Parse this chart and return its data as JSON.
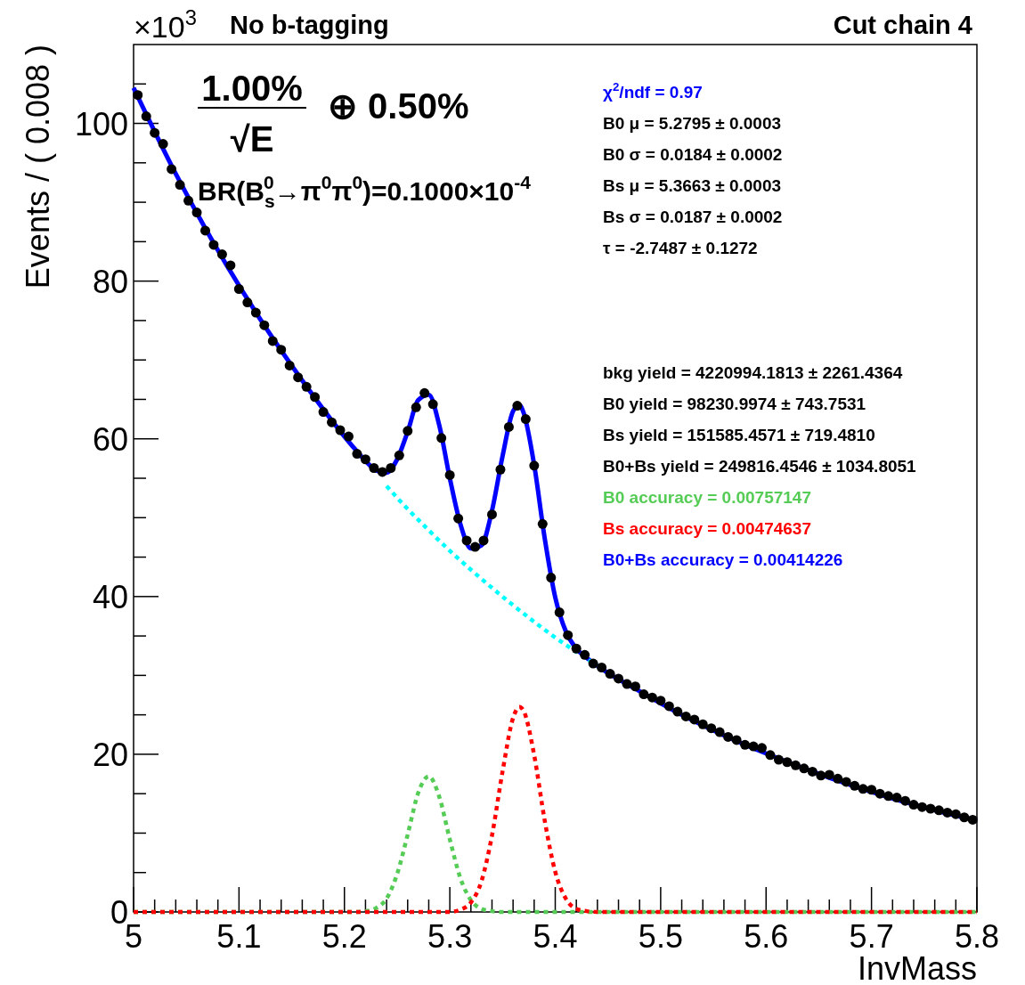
{
  "chart_data": {
    "type": "scatter",
    "title": "No b-tagging",
    "subtitle": "Cut chain 4",
    "xlabel": "InvMass",
    "ylabel": "Events / ( 0.008 )",
    "xlim": [
      5,
      5.8
    ],
    "ylim": [
      0,
      110
    ],
    "xticks": [
      5,
      {
        "value": 5.02,
        "label": null
      },
      {
        "value": 5.04,
        "label": null
      },
      {
        "value": 5.06,
        "label": null
      },
      {
        "value": 5.08,
        "label": null
      },
      5.1,
      {
        "value": 5.12,
        "label": null
      },
      {
        "value": 5.14,
        "label": null
      },
      {
        "value": 5.16,
        "label": null
      },
      {
        "value": 5.18,
        "label": null
      },
      5.2,
      {
        "value": 5.22,
        "label": null
      },
      {
        "value": 5.24,
        "label": null
      },
      {
        "value": 5.26,
        "label": null
      },
      {
        "value": 5.28,
        "label": null
      },
      5.3,
      {
        "value": 5.32,
        "label": null
      },
      {
        "value": 5.34,
        "label": null
      },
      {
        "value": 5.36,
        "label": null
      },
      {
        "value": 5.38,
        "label": null
      },
      5.4,
      {
        "value": 5.42,
        "label": null
      },
      {
        "value": 5.44,
        "label": null
      },
      {
        "value": 5.46,
        "label": null
      },
      {
        "value": 5.48,
        "label": null
      },
      5.5,
      {
        "value": 5.52,
        "label": null
      },
      {
        "value": 5.54,
        "label": null
      },
      {
        "value": 5.56,
        "label": null
      },
      {
        "value": 5.58,
        "label": null
      },
      5.6,
      {
        "value": 5.62,
        "label": null
      },
      {
        "value": 5.64,
        "label": null
      },
      {
        "value": 5.66,
        "label": null
      },
      {
        "value": 5.68,
        "label": null
      },
      5.7,
      {
        "value": 5.72,
        "label": null
      },
      {
        "value": 5.74,
        "label": null
      },
      {
        "value": 5.76,
        "label": null
      },
      {
        "value": 5.78,
        "label": null
      },
      5.8
    ],
    "yticks": [
      0,
      {
        "value": 5,
        "label": null
      },
      {
        "value": 10,
        "label": null
      },
      {
        "value": 15,
        "label": null
      },
      20,
      {
        "value": 25,
        "label": null
      },
      {
        "value": 30,
        "label": null
      },
      {
        "value": 35,
        "label": null
      },
      40,
      {
        "value": 45,
        "label": null
      },
      {
        "value": 50,
        "label": null
      },
      {
        "value": 55,
        "label": null
      },
      60,
      {
        "value": 65,
        "label": null
      },
      {
        "value": 70,
        "label": null
      },
      {
        "value": 75,
        "label": null
      },
      80,
      {
        "value": 85,
        "label": null
      },
      {
        "value": 90,
        "label": null
      },
      {
        "value": 95,
        "label": null
      },
      100,
      {
        "value": 105,
        "label": null
      }
    ],
    "grid": false,
    "marker": "circle",
    "series": [
      {
        "type": "line",
        "color": "#0000ff",
        "line_style": "solid",
        "marker": "none",
        "x": [
          5,
          5.04,
          5.08,
          5.12,
          5.16,
          5.2,
          5.21,
          5.22,
          5.23,
          5.24,
          5.25,
          5.26,
          5.27,
          5.28,
          5.29,
          5.3,
          5.31,
          5.32,
          5.33,
          5.34,
          5.35,
          5.36,
          5.366,
          5.37,
          5.38,
          5.39,
          5.4,
          5.41,
          5.42,
          5.43,
          5.44,
          5.48,
          5.52,
          5.56,
          5.6,
          5.64,
          5.68,
          5.72,
          5.76,
          5.8
        ],
        "values": [
          104.5,
          93.6,
          83.9,
          75.2,
          67.4,
          60.3,
          58.7,
          57.2,
          56.0,
          55.7,
          57.4,
          60.9,
          64.9,
          65.6,
          61.7,
          55.0,
          49.2,
          46.1,
          46.5,
          50.9,
          57.8,
          63.5,
          64.3,
          63.3,
          56.7,
          47.4,
          39.9,
          35.6,
          33.4,
          32.2,
          31.2,
          28.0,
          25.0,
          22.4,
          20.1,
          18.0,
          16.1,
          14.4,
          12.9,
          11.6
        ]
      },
      {
        "type": "line",
        "color": "#00ffff",
        "line_style": "dotted",
        "marker": "none",
        "x": [
          5.24,
          5.26,
          5.28,
          5.3,
          5.32,
          5.34,
          5.36,
          5.38,
          5.4,
          5.42,
          5.44
        ],
        "values": [
          54.0,
          51.1,
          48.4,
          45.8,
          43.4,
          41.1,
          38.9,
          36.8,
          34.8,
          33.0,
          31.2
        ]
      },
      {
        "type": "line",
        "color": "#55cc55",
        "line_style": "dotted",
        "marker": "none",
        "x": [
          5,
          5.21,
          5.22,
          5.23,
          5.24,
          5.25,
          5.26,
          5.27,
          5.28,
          5.29,
          5.3,
          5.31,
          5.32,
          5.33,
          5.34,
          5.35,
          5.8
        ],
        "values": [
          0,
          0,
          0.1,
          0.5,
          1.7,
          4.8,
          9.8,
          15.1,
          17.2,
          14.6,
          9.2,
          4.3,
          1.5,
          0.4,
          0.1,
          0,
          0
        ]
      },
      {
        "type": "line",
        "color": "#ff0000",
        "line_style": "dotted",
        "marker": "none",
        "x": [
          5,
          5.3,
          5.31,
          5.32,
          5.33,
          5.34,
          5.35,
          5.36,
          5.366,
          5.37,
          5.38,
          5.39,
          5.4,
          5.41,
          5.42,
          5.43,
          5.44,
          5.8
        ],
        "values": [
          0,
          0,
          0.3,
          1.2,
          3.9,
          9.7,
          17.8,
          24.6,
          26.0,
          25.5,
          19.9,
          11.6,
          5.1,
          1.7,
          0.4,
          0.1,
          0,
          0
        ]
      },
      {
        "type": "scatter",
        "color": "#000000",
        "x": [
          5.004,
          5.012,
          5.02,
          5.028,
          5.036,
          5.044,
          5.052,
          5.06,
          5.068,
          5.076,
          5.084,
          5.092,
          5.1,
          5.108,
          5.116,
          5.124,
          5.132,
          5.14,
          5.148,
          5.156,
          5.164,
          5.172,
          5.18,
          5.188,
          5.196,
          5.204,
          5.212,
          5.22,
          5.228,
          5.236,
          5.244,
          5.252,
          5.26,
          5.268,
          5.276,
          5.284,
          5.292,
          5.3,
          5.308,
          5.316,
          5.324,
          5.332,
          5.34,
          5.348,
          5.356,
          5.364,
          5.372,
          5.38,
          5.388,
          5.396,
          5.404,
          5.412,
          5.42,
          5.428,
          5.436,
          5.444,
          5.452,
          5.46,
          5.468,
          5.476,
          5.484,
          5.492,
          5.5,
          5.508,
          5.516,
          5.524,
          5.532,
          5.54,
          5.548,
          5.556,
          5.564,
          5.572,
          5.58,
          5.588,
          5.596,
          5.604,
          5.612,
          5.62,
          5.628,
          5.636,
          5.644,
          5.652,
          5.66,
          5.668,
          5.676,
          5.684,
          5.692,
          5.7,
          5.708,
          5.716,
          5.724,
          5.732,
          5.74,
          5.748,
          5.756,
          5.764,
          5.772,
          5.78,
          5.788,
          5.796
        ],
        "values": [
          103.6,
          100.9,
          98.8,
          97.4,
          94.2,
          92.2,
          90.2,
          88.7,
          86.4,
          84.6,
          83.4,
          82.0,
          79.0,
          77.3,
          76.0,
          74.4,
          72.4,
          71.3,
          69.3,
          67.8,
          66.6,
          65.3,
          63.4,
          62.1,
          61.1,
          60.3,
          58.1,
          57.4,
          56.3,
          55.8,
          56.3,
          57.9,
          61.0,
          64.0,
          65.8,
          64.4,
          60.1,
          55.4,
          49.9,
          47.1,
          46.3,
          47.1,
          50.4,
          56.1,
          61.5,
          64.2,
          62.5,
          56.6,
          49.2,
          42.4,
          38.0,
          35.1,
          33.4,
          32.6,
          31.5,
          31.0,
          30.2,
          29.6,
          28.9,
          28.6,
          27.6,
          27.2,
          26.8,
          26.1,
          25.4,
          24.8,
          24.4,
          23.8,
          23.3,
          22.8,
          22.2,
          21.8,
          21.2,
          21.0,
          20.8,
          19.9,
          19.3,
          19.0,
          18.6,
          18.2,
          17.8,
          17.3,
          17.4,
          16.9,
          16.5,
          16.0,
          15.6,
          15.5,
          15.0,
          14.7,
          14.5,
          14.1,
          13.6,
          13.3,
          13.1,
          12.9,
          12.6,
          12.4,
          12.0,
          11.7
        ]
      }
    ],
    "annotations": [
      "×10$^{3}$",
      "1.00%",
      "√E",
      "⊕ 0.50%",
      "BR(B$_{s}$$^{0}$→π$^{0}$π$^{0}$)=0.1000×10$^{-4}$",
      "χ$^{2}$/ndf = 0.97",
      "B0  μ = 5.2795  ± 0.0003",
      "B0  σ = 0.0184  ± 0.0002",
      "Bs  μ = 5.3663  ± 0.0003",
      "Bs  σ = 0.0187  ± 0.0002",
      "τ = -2.7487  ± 0.1272",
      "bkg yield = 4220994.1813  ± 2261.4364",
      "B0 yield = 98230.9974  ± 743.7531",
      "Bs yield = 151585.4571 ± 719.4810",
      "B0+Bs yield = 249816.4546  ± 1034.8051",
      "B0 accuracy = 0.00757147",
      "Bs accuracy = 0.00474637",
      "B0+Bs accuracy = 0.00414226"
    ]
  }
}
